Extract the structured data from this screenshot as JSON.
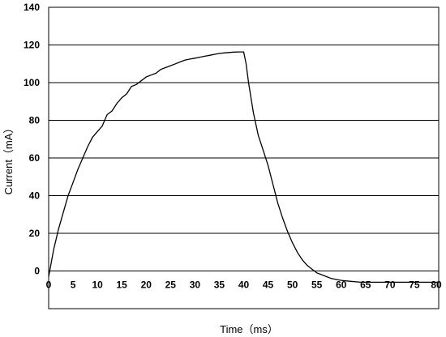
{
  "chart_data": {
    "type": "line",
    "title": "",
    "xlabel": "Time（ms）",
    "ylabel": "Current（mA）",
    "xlim": [
      0,
      80
    ],
    "ylim": [
      -20,
      140
    ],
    "x_ticks": [
      0,
      5,
      10,
      15,
      20,
      25,
      30,
      35,
      40,
      45,
      50,
      55,
      60,
      65,
      70,
      75,
      80
    ],
    "y_ticks": [
      0,
      20,
      40,
      60,
      80,
      100,
      120,
      140
    ],
    "grid": "horizontal",
    "legend": "none",
    "colors": {
      "line": "#000000",
      "grid": "#000000",
      "background": "#ffffff"
    },
    "series": [
      {
        "x": [
          0,
          1,
          2,
          3,
          4,
          5,
          6,
          7,
          8,
          9,
          10,
          11,
          12,
          13,
          14,
          15,
          16,
          17,
          18,
          19,
          20,
          21,
          22,
          23,
          24,
          25,
          26,
          27,
          28,
          29,
          30,
          31,
          32,
          33,
          34,
          35,
          36,
          37,
          38,
          39,
          40,
          40.5,
          41,
          42,
          43,
          44,
          45,
          46,
          47,
          48,
          49,
          50,
          51,
          52,
          53,
          54,
          55,
          56,
          57,
          58,
          59,
          60,
          62,
          64,
          66,
          68,
          70,
          72,
          74,
          76,
          78,
          80
        ],
        "y": [
          -3,
          11,
          22,
          31,
          40,
          47,
          54,
          60,
          66,
          71,
          74,
          77,
          83,
          85,
          89,
          92,
          94,
          98,
          99,
          101,
          103,
          104,
          105,
          107,
          108,
          109,
          110,
          111,
          112,
          112.5,
          113,
          113.5,
          114,
          114.5,
          115,
          115.5,
          115.8,
          116,
          116.2,
          116.3,
          116.3,
          110,
          100,
          84,
          72,
          64,
          56,
          46,
          36,
          28,
          21,
          15,
          10,
          6,
          3,
          1,
          -1,
          -2,
          -3,
          -4,
          -4.5,
          -5,
          -5.5,
          -6,
          -6,
          -6,
          -6,
          -6,
          -6,
          -6,
          -6,
          -6
        ]
      }
    ]
  }
}
